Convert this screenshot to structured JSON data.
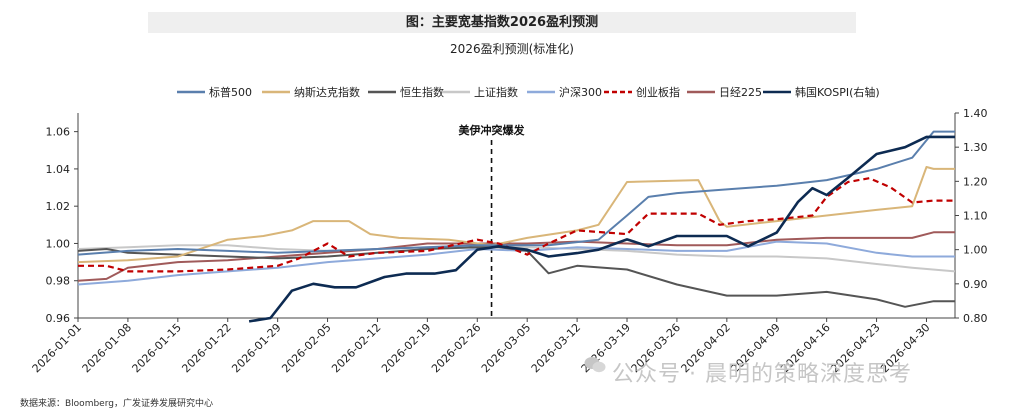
{
  "title": "图：主要宽基指数2026盈利预测",
  "subtitle": "2026盈利预测(标准化)",
  "source": "数据来源：Bloomberg，广发证券发展研究中心",
  "watermark": "公众号 · 晨明的策略深度思考",
  "annotation": "美伊冲突爆发",
  "colors": {
    "sp500": "#5a7fad",
    "nasdaq": "#d9b679",
    "hsi": "#555555",
    "sse": "#c8c8c8",
    "csi300": "#8eaadb",
    "chinext": "#c00000",
    "nikkei": "#a05a5a",
    "kospi": "#0d2b52"
  },
  "chart_data": {
    "type": "line",
    "x_dates": [
      "2026-01-01",
      "2026-01-08",
      "2026-01-15",
      "2026-01-22",
      "2026-01-29",
      "2026-02-05",
      "2026-02-12",
      "2026-02-19",
      "2026-02-26",
      "2026-03-05",
      "2026-03-12",
      "2026-03-19",
      "2026-03-26",
      "2026-04-02",
      "2026-04-09",
      "2026-04-16",
      "2026-04-23",
      "2026-04-30"
    ],
    "x_range": [
      "2026-01-01",
      "2026-05-04"
    ],
    "y_left": {
      "range": [
        0.96,
        1.07
      ],
      "ticks": [
        "0.96",
        "0.98",
        "1.00",
        "1.02",
        "1.04",
        "1.06"
      ]
    },
    "y_right": {
      "range": [
        0.8,
        1.4
      ],
      "ticks": [
        "0.80",
        "0.90",
        "1.00",
        "1.10",
        "1.20",
        "1.30",
        "1.40"
      ]
    },
    "event_line": {
      "date": "2026-02-28",
      "label": "美伊冲突爆发"
    },
    "legend_position": "top",
    "series": [
      {
        "key": "sp500",
        "name": "标普500",
        "axis": "left",
        "style": "solid",
        "points": [
          [
            "2026-01-01",
            0.994
          ],
          [
            "2026-01-08",
            0.996
          ],
          [
            "2026-01-15",
            0.997
          ],
          [
            "2026-01-22",
            0.996
          ],
          [
            "2026-01-29",
            0.995
          ],
          [
            "2026-02-05",
            0.996
          ],
          [
            "2026-02-12",
            0.997
          ],
          [
            "2026-02-19",
            0.998
          ],
          [
            "2026-02-26",
            0.999
          ],
          [
            "2026-03-01",
            0.999
          ],
          [
            "2026-03-08",
            0.999
          ],
          [
            "2026-03-15",
            1.002
          ],
          [
            "2026-03-19",
            1.015
          ],
          [
            "2026-03-22",
            1.025
          ],
          [
            "2026-03-26",
            1.027
          ],
          [
            "2026-04-02",
            1.029
          ],
          [
            "2026-04-09",
            1.031
          ],
          [
            "2026-04-16",
            1.034
          ],
          [
            "2026-04-23",
            1.04
          ],
          [
            "2026-04-28",
            1.046
          ],
          [
            "2026-05-01",
            1.06
          ],
          [
            "2026-05-04",
            1.06
          ]
        ]
      },
      {
        "key": "nasdaq",
        "name": "纳斯达克指数",
        "axis": "left",
        "style": "solid",
        "points": [
          [
            "2026-01-01",
            0.99
          ],
          [
            "2026-01-08",
            0.991
          ],
          [
            "2026-01-15",
            0.993
          ],
          [
            "2026-01-22",
            1.002
          ],
          [
            "2026-01-27",
            1.004
          ],
          [
            "2026-01-31",
            1.007
          ],
          [
            "2026-02-03",
            1.012
          ],
          [
            "2026-02-08",
            1.012
          ],
          [
            "2026-02-11",
            1.005
          ],
          [
            "2026-02-15",
            1.003
          ],
          [
            "2026-02-22",
            1.002
          ],
          [
            "2026-02-28",
            0.999
          ],
          [
            "2026-03-05",
            1.003
          ],
          [
            "2026-03-12",
            1.007
          ],
          [
            "2026-03-15",
            1.01
          ],
          [
            "2026-03-19",
            1.033
          ],
          [
            "2026-03-29",
            1.034
          ],
          [
            "2026-04-01",
            1.012
          ],
          [
            "2026-04-02",
            1.009
          ],
          [
            "2026-04-09",
            1.012
          ],
          [
            "2026-04-16",
            1.015
          ],
          [
            "2026-04-23",
            1.018
          ],
          [
            "2026-04-28",
            1.02
          ],
          [
            "2026-04-30",
            1.041
          ],
          [
            "2026-05-01",
            1.04
          ],
          [
            "2026-05-04",
            1.04
          ]
        ]
      },
      {
        "key": "hsi",
        "name": "恒生指数",
        "axis": "left",
        "style": "solid",
        "points": [
          [
            "2026-01-01",
            0.996
          ],
          [
            "2026-01-05",
            0.997
          ],
          [
            "2026-01-08",
            0.995
          ],
          [
            "2026-01-15",
            0.994
          ],
          [
            "2026-01-22",
            0.993
          ],
          [
            "2026-01-29",
            0.992
          ],
          [
            "2026-02-05",
            0.993
          ],
          [
            "2026-02-12",
            0.995
          ],
          [
            "2026-02-19",
            0.997
          ],
          [
            "2026-02-26",
            0.998
          ],
          [
            "2026-03-01",
            0.998
          ],
          [
            "2026-03-05",
            0.996
          ],
          [
            "2026-03-08",
            0.984
          ],
          [
            "2026-03-12",
            0.988
          ],
          [
            "2026-03-19",
            0.986
          ],
          [
            "2026-03-26",
            0.978
          ],
          [
            "2026-04-02",
            0.972
          ],
          [
            "2026-04-09",
            0.972
          ],
          [
            "2026-04-16",
            0.974
          ],
          [
            "2026-04-23",
            0.97
          ],
          [
            "2026-04-27",
            0.966
          ],
          [
            "2026-05-01",
            0.969
          ],
          [
            "2026-05-04",
            0.969
          ]
        ]
      },
      {
        "key": "sse",
        "name": "上证指数",
        "axis": "left",
        "style": "solid",
        "points": [
          [
            "2026-01-01",
            0.997
          ],
          [
            "2026-01-08",
            0.998
          ],
          [
            "2026-01-15",
            0.999
          ],
          [
            "2026-01-22",
            0.999
          ],
          [
            "2026-01-29",
            0.997
          ],
          [
            "2026-02-05",
            0.996
          ],
          [
            "2026-02-12",
            0.997
          ],
          [
            "2026-02-19",
            0.998
          ],
          [
            "2026-02-26",
            0.999
          ],
          [
            "2026-03-05",
            0.998
          ],
          [
            "2026-03-12",
            0.997
          ],
          [
            "2026-03-19",
            0.996
          ],
          [
            "2026-03-26",
            0.994
          ],
          [
            "2026-04-02",
            0.993
          ],
          [
            "2026-04-09",
            0.993
          ],
          [
            "2026-04-16",
            0.992
          ],
          [
            "2026-04-23",
            0.989
          ],
          [
            "2026-04-28",
            0.987
          ],
          [
            "2026-05-04",
            0.985
          ]
        ]
      },
      {
        "key": "csi300",
        "name": "沪深300",
        "axis": "left",
        "style": "solid",
        "points": [
          [
            "2026-01-01",
            0.978
          ],
          [
            "2026-01-08",
            0.98
          ],
          [
            "2026-01-15",
            0.983
          ],
          [
            "2026-01-22",
            0.985
          ],
          [
            "2026-01-29",
            0.987
          ],
          [
            "2026-02-05",
            0.99
          ],
          [
            "2026-02-12",
            0.992
          ],
          [
            "2026-02-19",
            0.994
          ],
          [
            "2026-02-26",
            0.997
          ],
          [
            "2026-03-05",
            0.996
          ],
          [
            "2026-03-12",
            0.998
          ],
          [
            "2026-03-19",
            0.997
          ],
          [
            "2026-03-26",
            0.996
          ],
          [
            "2026-04-02",
            0.996
          ],
          [
            "2026-04-09",
            1.001
          ],
          [
            "2026-04-16",
            1.0
          ],
          [
            "2026-04-23",
            0.995
          ],
          [
            "2026-04-28",
            0.993
          ],
          [
            "2026-05-04",
            0.993
          ]
        ]
      },
      {
        "key": "chinext",
        "name": "创业板指",
        "axis": "left",
        "style": "dashed",
        "points": [
          [
            "2026-01-01",
            0.988
          ],
          [
            "2026-01-05",
            0.988
          ],
          [
            "2026-01-08",
            0.985
          ],
          [
            "2026-01-15",
            0.985
          ],
          [
            "2026-01-22",
            0.986
          ],
          [
            "2026-01-29",
            0.988
          ],
          [
            "2026-02-01",
            0.992
          ],
          [
            "2026-02-05",
            1.0
          ],
          [
            "2026-02-08",
            0.993
          ],
          [
            "2026-02-12",
            0.995
          ],
          [
            "2026-02-19",
            0.996
          ],
          [
            "2026-02-26",
            1.002
          ],
          [
            "2026-03-01",
            1.0
          ],
          [
            "2026-03-05",
            0.994
          ],
          [
            "2026-03-08",
            1.0
          ],
          [
            "2026-03-12",
            1.007
          ],
          [
            "2026-03-19",
            1.005
          ],
          [
            "2026-03-22",
            1.016
          ],
          [
            "2026-03-29",
            1.016
          ],
          [
            "2026-04-01",
            1.01
          ],
          [
            "2026-04-05",
            1.012
          ],
          [
            "2026-04-09",
            1.013
          ],
          [
            "2026-04-14",
            1.015
          ],
          [
            "2026-04-16",
            1.025
          ],
          [
            "2026-04-19",
            1.033
          ],
          [
            "2026-04-22",
            1.035
          ],
          [
            "2026-04-25",
            1.03
          ],
          [
            "2026-04-28",
            1.022
          ],
          [
            "2026-05-01",
            1.023
          ],
          [
            "2026-05-04",
            1.023
          ]
        ]
      },
      {
        "key": "nikkei",
        "name": "日经225",
        "axis": "left",
        "style": "solid",
        "points": [
          [
            "2026-01-01",
            0.98
          ],
          [
            "2026-01-05",
            0.981
          ],
          [
            "2026-01-08",
            0.987
          ],
          [
            "2026-01-15",
            0.99
          ],
          [
            "2026-01-22",
            0.991
          ],
          [
            "2026-01-29",
            0.993
          ],
          [
            "2026-02-05",
            0.995
          ],
          [
            "2026-02-12",
            0.997
          ],
          [
            "2026-02-19",
            1.0
          ],
          [
            "2026-02-26",
            1.0
          ],
          [
            "2026-03-05",
            1.0
          ],
          [
            "2026-03-12",
            1.001
          ],
          [
            "2026-03-19",
            1.0
          ],
          [
            "2026-03-26",
            0.999
          ],
          [
            "2026-04-02",
            0.999
          ],
          [
            "2026-04-09",
            1.002
          ],
          [
            "2026-04-16",
            1.003
          ],
          [
            "2026-04-23",
            1.003
          ],
          [
            "2026-04-28",
            1.003
          ],
          [
            "2026-05-01",
            1.006
          ],
          [
            "2026-05-04",
            1.006
          ]
        ]
      },
      {
        "key": "kospi",
        "name": "韩国KOSPI(右轴)",
        "axis": "right",
        "style": "solid",
        "points": [
          [
            "2026-01-25",
            0.79
          ],
          [
            "2026-01-28",
            0.8
          ],
          [
            "2026-01-31",
            0.88
          ],
          [
            "2026-02-03",
            0.9
          ],
          [
            "2026-02-06",
            0.89
          ],
          [
            "2026-02-09",
            0.89
          ],
          [
            "2026-02-13",
            0.92
          ],
          [
            "2026-02-16",
            0.93
          ],
          [
            "2026-02-20",
            0.93
          ],
          [
            "2026-02-23",
            0.94
          ],
          [
            "2026-02-26",
            1.0
          ],
          [
            "2026-03-01",
            1.01
          ],
          [
            "2026-03-05",
            1.0
          ],
          [
            "2026-03-08",
            0.98
          ],
          [
            "2026-03-12",
            0.99
          ],
          [
            "2026-03-15",
            1.0
          ],
          [
            "2026-03-19",
            1.03
          ],
          [
            "2026-03-22",
            1.01
          ],
          [
            "2026-03-26",
            1.04
          ],
          [
            "2026-04-02",
            1.04
          ],
          [
            "2026-04-05",
            1.01
          ],
          [
            "2026-04-09",
            1.05
          ],
          [
            "2026-04-12",
            1.14
          ],
          [
            "2026-04-14",
            1.18
          ],
          [
            "2026-04-16",
            1.16
          ],
          [
            "2026-04-19",
            1.21
          ],
          [
            "2026-04-23",
            1.28
          ],
          [
            "2026-04-27",
            1.3
          ],
          [
            "2026-04-30",
            1.33
          ],
          [
            "2026-05-04",
            1.33
          ]
        ]
      }
    ]
  }
}
